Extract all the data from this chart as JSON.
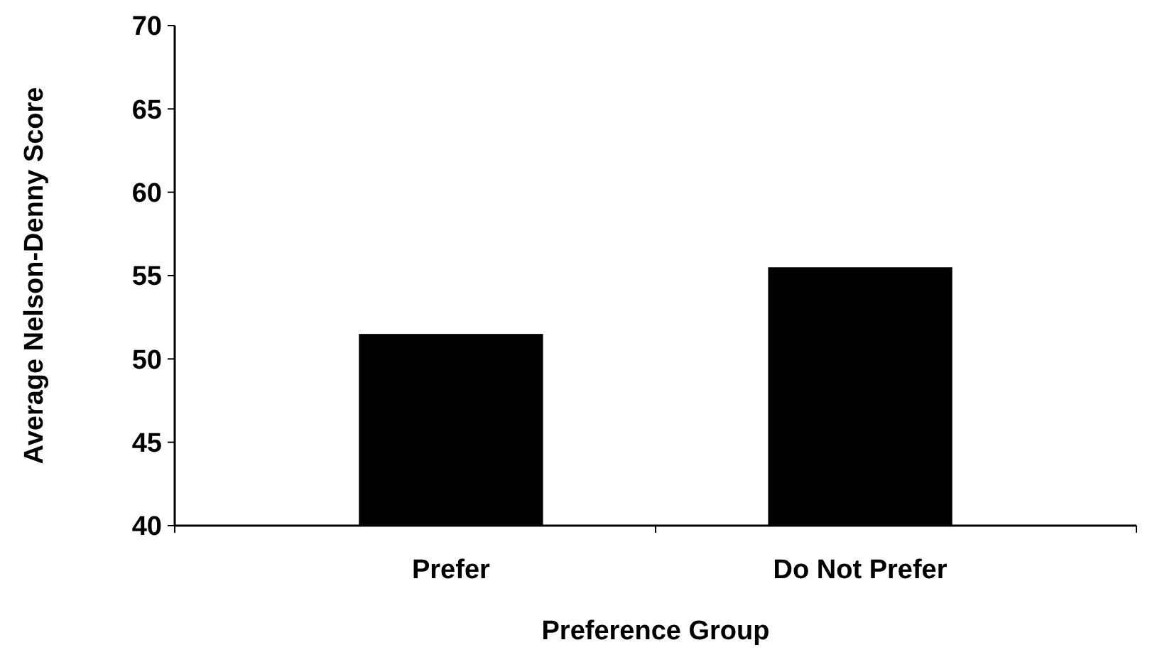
{
  "chart_data": {
    "type": "bar",
    "xlabel": "Preference Group",
    "ylabel": "Average Nelson-Denny Score",
    "categories": [
      "Prefer",
      "Do Not Prefer"
    ],
    "values": [
      51.5,
      55.5
    ],
    "color": "#000000",
    "ylim": [
      40,
      70
    ],
    "yticks": [
      40,
      45,
      50,
      55,
      60,
      65,
      70
    ]
  }
}
